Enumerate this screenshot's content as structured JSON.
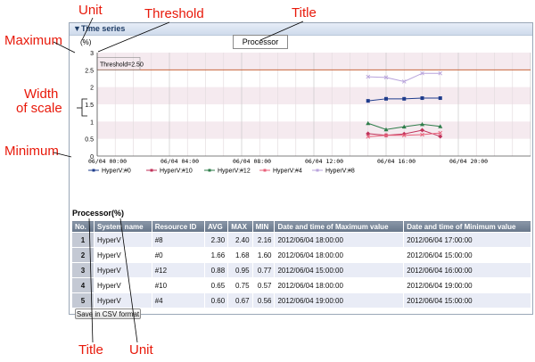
{
  "annotations": {
    "unit_top": "Unit",
    "threshold": "Threshold",
    "title_top": "Title",
    "maximum": "Maximum",
    "width_of_scale_1": "Width",
    "width_of_scale_2": "of scale",
    "minimum": "Minimum",
    "title_bottom": "Title",
    "unit_bottom": "Unit"
  },
  "panel": {
    "header_title": "Time series",
    "chart_title": "Processor",
    "unit": "(%)",
    "threshold_label": "Threshold=2.50"
  },
  "chart_data": {
    "type": "line",
    "ylim": [
      0,
      3
    ],
    "y_ticks": [
      "0",
      "0.5",
      "1",
      "1.5",
      "2",
      "2.5",
      "3"
    ],
    "x_ticks": [
      "06/04 00:00",
      "06/04 04:00",
      "06/04 08:00",
      "06/04 12:00",
      "06/04 16:00",
      "06/04 20:00"
    ],
    "threshold": 2.5,
    "grid": true,
    "legend_placement": "bottom",
    "series": [
      {
        "name": "HyperV:#0",
        "color": "#1f3c8c",
        "marker": "square",
        "x_hours": [
          15,
          16,
          17,
          18,
          19
        ],
        "values": [
          1.6,
          1.66,
          1.66,
          1.68,
          1.68
        ]
      },
      {
        "name": "HyperV:#10",
        "color": "#c0325a",
        "marker": "diamond",
        "x_hours": [
          15,
          16,
          17,
          18,
          19
        ],
        "values": [
          0.65,
          0.6,
          0.64,
          0.75,
          0.57
        ]
      },
      {
        "name": "HyperV:#12",
        "color": "#2e7d4a",
        "marker": "triangle",
        "x_hours": [
          15,
          16,
          17,
          18,
          19
        ],
        "values": [
          0.95,
          0.77,
          0.85,
          0.92,
          0.86
        ]
      },
      {
        "name": "HyperV:#4",
        "color": "#e8617a",
        "marker": "x",
        "x_hours": [
          15,
          16,
          17,
          18,
          19
        ],
        "values": [
          0.56,
          0.6,
          0.6,
          0.62,
          0.67
        ]
      },
      {
        "name": "HyperV:#8",
        "color": "#b8a3dc",
        "marker": "x",
        "x_hours": [
          15,
          16,
          17,
          18,
          19
        ],
        "values": [
          2.3,
          2.28,
          2.16,
          2.4,
          2.4
        ]
      }
    ]
  },
  "table": {
    "title": "Processor(%)",
    "headers": [
      "No.",
      "System name",
      "Resource ID",
      "AVG",
      "MAX",
      "MIN",
      "Date and time of Maximum value",
      "Date and time of Minimum value"
    ],
    "rows": [
      [
        "1",
        "HyperV",
        "#8",
        "2.30",
        "2.40",
        "2.16",
        "2012/06/04 18:00:00",
        "2012/06/04 17:00:00"
      ],
      [
        "2",
        "HyperV",
        "#0",
        "1.66",
        "1.68",
        "1.60",
        "2012/06/04 18:00:00",
        "2012/06/04 15:00:00"
      ],
      [
        "3",
        "HyperV",
        "#12",
        "0.88",
        "0.95",
        "0.77",
        "2012/06/04 15:00:00",
        "2012/06/04 16:00:00"
      ],
      [
        "4",
        "HyperV",
        "#10",
        "0.65",
        "0.75",
        "0.57",
        "2012/06/04 18:00:00",
        "2012/06/04 19:00:00"
      ],
      [
        "5",
        "HyperV",
        "#4",
        "0.60",
        "0.67",
        "0.56",
        "2012/06/04 19:00:00",
        "2012/06/04 15:00:00"
      ]
    ]
  },
  "buttons": {
    "csv": "Save in CSV format"
  }
}
